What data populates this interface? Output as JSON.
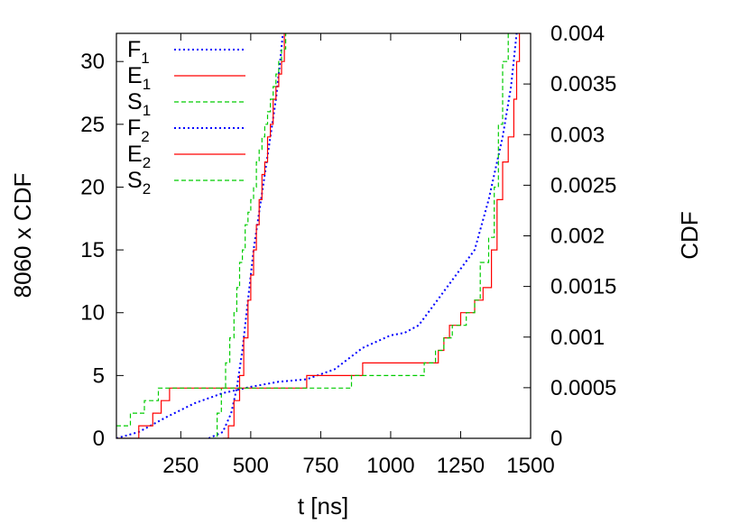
{
  "chart_data": {
    "type": "line",
    "xlabel": "t [ns]",
    "ylabel_left": "8060 x CDF",
    "ylabel_right": "CDF",
    "xlim": [
      20,
      1500
    ],
    "ylim_left": [
      0,
      32.24
    ],
    "ylim_right": [
      0,
      0.004
    ],
    "x_ticks": [
      250,
      500,
      750,
      1000,
      1250,
      1500
    ],
    "x_tick_labels": [
      "250",
      "500",
      "750",
      "1000",
      "1250",
      "1500"
    ],
    "y_left_ticks": [
      0,
      5,
      10,
      15,
      20,
      25,
      30
    ],
    "y_left_tick_labels": [
      "0",
      "5",
      "10",
      "15",
      "20",
      "25",
      "30"
    ],
    "y_right_ticks": [
      0,
      0.0005,
      0.001,
      0.0015,
      0.002,
      0.0025,
      0.003,
      0.0035,
      0.004
    ],
    "y_right_tick_labels": [
      "0",
      "0.0005",
      "0.001",
      "0.0015",
      "0.002",
      "0.0025",
      "0.003",
      "0.0035",
      "0.004"
    ],
    "grid": false,
    "legend_position": "top-left",
    "series": [
      {
        "name": "F",
        "sub": "1",
        "color": "#0000ff",
        "style": "dotted",
        "step": false,
        "x": [
          350,
          400,
          430,
          450,
          470,
          490,
          510,
          530,
          550,
          570,
          590,
          605,
          615
        ],
        "y": [
          0,
          0.5,
          2,
          4,
          7,
          11,
          15,
          18,
          21,
          24,
          27,
          30,
          32.24
        ]
      },
      {
        "name": "E",
        "sub": "1",
        "color": "#ff0000",
        "style": "solid",
        "step": true,
        "x": [
          400,
          420,
          440,
          460,
          475,
          490,
          500,
          510,
          520,
          530,
          540,
          550,
          560,
          570,
          580,
          590,
          600,
          610,
          620
        ],
        "y": [
          0,
          1,
          3,
          5,
          8,
          11,
          13,
          15,
          17,
          19,
          21,
          22,
          24,
          25,
          27,
          28,
          29,
          30,
          32.24
        ]
      },
      {
        "name": "S",
        "sub": "1",
        "color": "#00cc00",
        "style": "dashed",
        "step": true,
        "x": [
          360,
          380,
          395,
          410,
          425,
          440,
          450,
          460,
          470,
          480,
          490,
          500,
          510,
          520,
          530,
          540,
          550,
          560,
          570,
          580,
          590,
          600,
          610,
          625
        ],
        "y": [
          0,
          2,
          4,
          6,
          8,
          10,
          12,
          14,
          15,
          17,
          18,
          19,
          20,
          22,
          23,
          24,
          25,
          26,
          27,
          28,
          29,
          30,
          31,
          32.24
        ]
      },
      {
        "name": "F",
        "sub": "2",
        "color": "#0000ff",
        "style": "dotted",
        "step": false,
        "x": [
          20,
          100,
          200,
          300,
          400,
          500,
          600,
          700,
          800,
          900,
          1000,
          1050,
          1100,
          1150,
          1200,
          1250,
          1300,
          1350,
          1400,
          1430,
          1450
        ],
        "y": [
          0,
          0.5,
          1.7,
          2.8,
          3.6,
          4.1,
          4.5,
          4.7,
          5.5,
          7.2,
          8.2,
          8.4,
          9.0,
          10.5,
          12.0,
          13.5,
          15.0,
          19.0,
          24.0,
          28.0,
          32.24
        ]
      },
      {
        "name": "E",
        "sub": "2",
        "color": "#ff0000",
        "style": "solid",
        "step": true,
        "x": [
          20,
          100,
          150,
          180,
          210,
          230,
          700,
          900,
          1170,
          1190,
          1210,
          1250,
          1300,
          1330,
          1360,
          1380,
          1400,
          1420,
          1440,
          1450,
          1460
        ],
        "y": [
          0,
          1,
          2,
          3,
          4,
          4,
          5,
          6,
          7,
          8,
          9,
          10,
          11,
          12,
          15,
          19,
          22,
          24,
          27,
          30,
          32.24
        ]
      },
      {
        "name": "S",
        "sub": "2",
        "color": "#00cc00",
        "style": "dashed",
        "step": true,
        "x": [
          20,
          70,
          120,
          150,
          170,
          195,
          860,
          1120,
          1160,
          1190,
          1220,
          1270,
          1300,
          1320,
          1350,
          1370,
          1385,
          1400,
          1420
        ],
        "y": [
          1,
          2,
          3,
          3,
          4,
          4,
          5,
          6,
          7,
          8,
          9,
          10,
          11,
          14,
          16,
          20,
          25,
          30,
          32.24
        ]
      }
    ]
  }
}
